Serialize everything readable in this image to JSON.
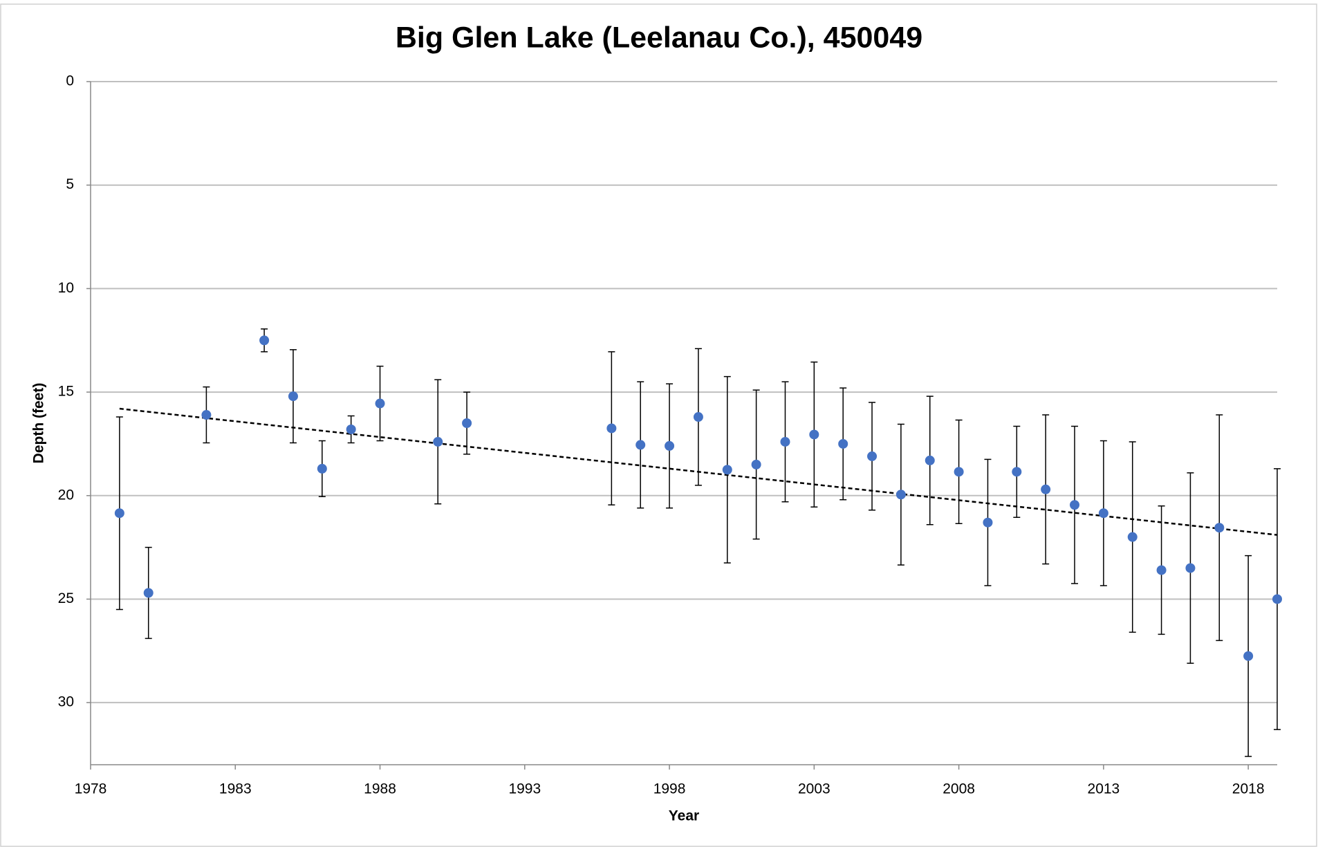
{
  "chart_data": {
    "type": "scatter",
    "title": "Big Glen Lake (Leelanau Co.), 450049",
    "x_label": "Year",
    "y_label": "Depth (feet)",
    "x": [
      1979,
      1980,
      1982,
      1984,
      1985,
      1986,
      1987,
      1988,
      1990,
      1991,
      1996,
      1997,
      1998,
      1999,
      2000,
      2001,
      2002,
      2003,
      2004,
      2005,
      2006,
      2007,
      2008,
      2009,
      2010,
      2011,
      2012,
      2013,
      2014,
      2015,
      2016,
      2017,
      2018,
      2019
    ],
    "values": [
      20.85,
      24.7,
      16.1,
      12.5,
      15.2,
      18.7,
      16.8,
      15.55,
      17.4,
      16.5,
      16.75,
      17.55,
      17.6,
      16.2,
      18.75,
      18.5,
      17.4,
      17.05,
      17.5,
      18.1,
      19.95,
      18.3,
      18.85,
      21.3,
      18.85,
      19.7,
      20.45,
      20.85,
      22.0,
      23.6,
      23.5,
      21.55,
      27.75,
      25.0
    ],
    "errors": [
      4.65,
      2.2,
      1.35,
      0.55,
      2.25,
      1.35,
      0.65,
      1.8,
      3.0,
      1.5,
      3.7,
      3.05,
      3.0,
      3.3,
      4.5,
      3.6,
      2.9,
      3.5,
      2.7,
      2.6,
      3.4,
      3.1,
      2.5,
      3.05,
      2.2,
      3.6,
      3.8,
      3.5,
      4.6,
      3.1,
      4.6,
      5.45,
      4.85,
      6.3
    ],
    "color": "#4472c4",
    "trend": {
      "x": [
        1979,
        2019
      ],
      "values": [
        15.8,
        21.9
      ],
      "color": "#000000"
    },
    "xlim": [
      1978,
      2019
    ],
    "xticks": [
      1978,
      1983,
      1988,
      1993,
      1998,
      2003,
      2008,
      2013,
      2018
    ],
    "ylim": [
      0,
      33
    ],
    "yticks": [
      0,
      5,
      10,
      15,
      20,
      25,
      30
    ],
    "y_inverted": true,
    "grid": true
  }
}
